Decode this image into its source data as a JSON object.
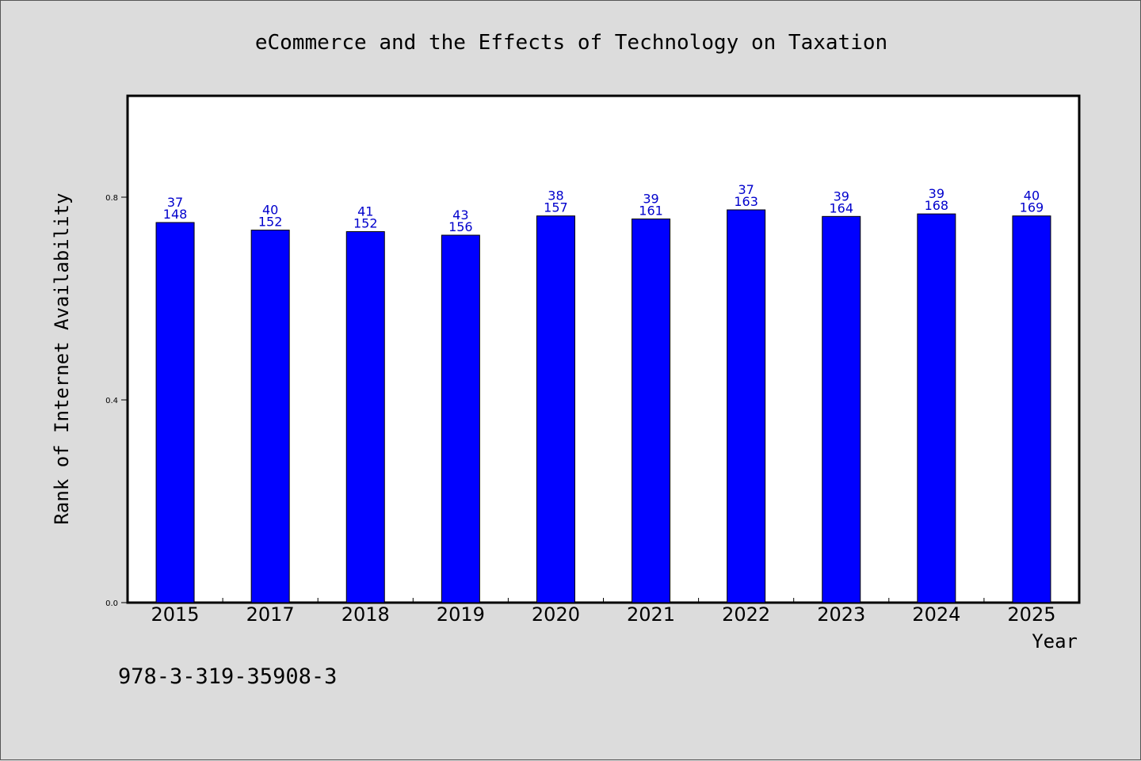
{
  "chart_data": {
    "type": "bar",
    "title": "eCommerce and the Effects of Technology on Taxation",
    "xlabel": "Year",
    "ylabel": "Rank of Internet Availability",
    "ylim": [
      0,
      1.0
    ],
    "yticks": [
      "0.0",
      "0.4",
      "0.8"
    ],
    "ytick_values": [
      0.0,
      0.4,
      0.8
    ],
    "grid": false,
    "bar_color": "#0000ff",
    "label_color": "#0000cc",
    "categories": [
      "2015",
      "2017",
      "2018",
      "2019",
      "2020",
      "2021",
      "2022",
      "2023",
      "2024",
      "2025"
    ],
    "values": [
      0.75,
      0.735,
      0.732,
      0.725,
      0.763,
      0.757,
      0.775,
      0.762,
      0.767,
      0.763
    ],
    "labels_upper": [
      "37",
      "40",
      "41",
      "43",
      "38",
      "39",
      "37",
      "39",
      "39",
      "40"
    ],
    "labels_lower": [
      "148",
      "152",
      "152",
      "156",
      "157",
      "161",
      "163",
      "164",
      "168",
      "169"
    ]
  },
  "footer": {
    "isbn": "978-3-319-35908-3"
  }
}
